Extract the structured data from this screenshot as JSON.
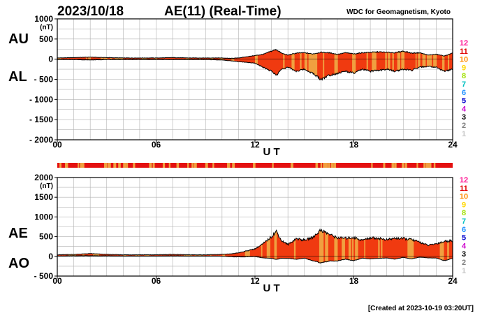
{
  "header": {
    "date": "2023/10/18",
    "title": "AE(11) (Real-Time)",
    "source": "WDC for Geomagnetism, Kyoto"
  },
  "footer": {
    "created": "[Created at 2023-10-19 03:20UT]"
  },
  "colors": {
    "fill_main": "#f03a10",
    "stripe": "#f0a040",
    "line": "#000000",
    "grid": "#b0b0b0"
  },
  "station_legend": [
    {
      "label": "12",
      "color": "#ff1493"
    },
    {
      "label": "11",
      "color": "#e00000"
    },
    {
      "label": "10",
      "color": "#ff8c00"
    },
    {
      "label": "9",
      "color": "#ffd700"
    },
    {
      "label": "8",
      "color": "#a0e000"
    },
    {
      "label": "7",
      "color": "#00c0c0"
    },
    {
      "label": "6",
      "color": "#1e90ff"
    },
    {
      "label": "5",
      "color": "#0000cd"
    },
    {
      "label": "4",
      "color": "#cc00cc"
    },
    {
      "label": "3",
      "color": "#000000"
    },
    {
      "label": "2",
      "color": "#808080"
    },
    {
      "label": "1",
      "color": "#c8c8c8"
    }
  ],
  "chart_data": [
    {
      "type": "area",
      "panel": "AU/AL",
      "side_labels": [
        "AU",
        "AL"
      ],
      "unit": "(nT)",
      "xlabel": "U T",
      "xlim": [
        0,
        24
      ],
      "ylim": [
        -2000,
        1000
      ],
      "xticks": [
        "00",
        "06",
        "12",
        "18",
        "24"
      ],
      "xtick_values": [
        0,
        6,
        12,
        18,
        24
      ],
      "yticks": [
        "1000",
        "500",
        "0",
        "- 500",
        "- 1000",
        "- 1500",
        "- 2000"
      ],
      "ytick_values": [
        1000,
        500,
        0,
        -500,
        -1000,
        -1500,
        -2000
      ],
      "x": [
        0,
        1,
        2,
        3,
        4,
        5,
        6,
        7,
        8,
        9,
        10,
        10.5,
        11,
        11.5,
        12,
        12.5,
        13,
        13.3,
        13.6,
        14,
        14.5,
        15,
        15.5,
        16,
        16.5,
        17,
        17.5,
        18,
        18.5,
        19,
        19.5,
        20,
        20.5,
        21,
        21.5,
        22,
        22.5,
        23,
        23.5,
        24
      ],
      "series": [
        {
          "name": "AU",
          "values": [
            30,
            40,
            50,
            40,
            30,
            30,
            30,
            40,
            30,
            30,
            30,
            20,
            30,
            60,
            90,
            120,
            200,
            240,
            150,
            100,
            150,
            160,
            130,
            170,
            160,
            120,
            160,
            130,
            160,
            170,
            180,
            170,
            160,
            200,
            150,
            160,
            100,
            120,
            80,
            150
          ]
        },
        {
          "name": "AL",
          "values": [
            -10,
            -10,
            -20,
            -10,
            -10,
            -10,
            -10,
            -10,
            -10,
            -10,
            -20,
            -40,
            -60,
            -80,
            -100,
            -200,
            -300,
            -400,
            -250,
            -200,
            -300,
            -250,
            -350,
            -500,
            -400,
            -350,
            -300,
            -350,
            -250,
            -300,
            -280,
            -250,
            -300,
            -250,
            -280,
            -200,
            -180,
            -200,
            -300,
            -250
          ]
        }
      ]
    },
    {
      "type": "area",
      "panel": "AE/AO",
      "side_labels": [
        "AE",
        "AO"
      ],
      "unit": "(nT)",
      "xlabel": "U T",
      "xlim": [
        0,
        24
      ],
      "ylim": [
        -500,
        2000
      ],
      "xticks": [
        "00",
        "06",
        "12",
        "18",
        "24"
      ],
      "xtick_values": [
        0,
        6,
        12,
        18,
        24
      ],
      "yticks": [
        "2000",
        "1500",
        "1000",
        "500",
        "0",
        "- 500"
      ],
      "ytick_values": [
        2000,
        1500,
        1000,
        500,
        0,
        -500
      ],
      "x": [
        0,
        1,
        2,
        3,
        4,
        5,
        6,
        7,
        8,
        9,
        10,
        10.5,
        11,
        11.5,
        12,
        12.5,
        13,
        13.3,
        13.6,
        14,
        14.5,
        15,
        15.5,
        16,
        16.5,
        17,
        17.5,
        18,
        18.5,
        19,
        19.5,
        20,
        20.5,
        21,
        21.5,
        22,
        22.5,
        23,
        23.5,
        24
      ],
      "series": [
        {
          "name": "AE",
          "values": [
            40,
            50,
            70,
            50,
            40,
            40,
            40,
            50,
            40,
            40,
            50,
            60,
            90,
            140,
            190,
            320,
            500,
            640,
            400,
            300,
            450,
            410,
            480,
            670,
            560,
            470,
            460,
            480,
            410,
            470,
            460,
            420,
            460,
            450,
            430,
            360,
            280,
            320,
            380,
            400
          ]
        },
        {
          "name": "AO",
          "values": [
            10,
            15,
            15,
            15,
            10,
            10,
            10,
            15,
            10,
            10,
            5,
            -10,
            -15,
            -10,
            -5,
            -40,
            -50,
            -80,
            -50,
            -50,
            -75,
            -45,
            -110,
            -165,
            -120,
            -115,
            -70,
            -110,
            -45,
            -65,
            -50,
            -40,
            -70,
            -25,
            -65,
            -20,
            -40,
            -40,
            -110,
            -50
          ]
        }
      ]
    }
  ]
}
